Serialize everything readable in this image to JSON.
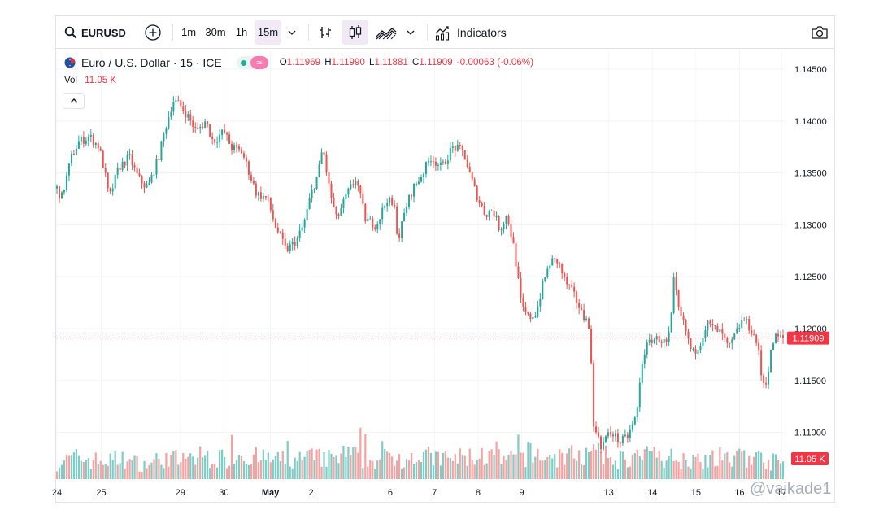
{
  "toolbar": {
    "symbol": "EURUSD",
    "intervals": [
      "1m",
      "30m",
      "1h",
      "15m"
    ],
    "active_interval": "15m",
    "indicators_label": "Indicators"
  },
  "legend": {
    "title": "Euro / U.S. Dollar · 15 · ICE",
    "ohlc": [
      {
        "key": "O",
        "value": "1.11969"
      },
      {
        "key": "H",
        "value": "1.11990"
      },
      {
        "key": "L",
        "value": "1.11881"
      },
      {
        "key": "C",
        "value": "1.11909"
      },
      {
        "key": "",
        "value": "-0.00063 (-0.06%)"
      }
    ],
    "volume_label": "Vol",
    "volume_value": "11.05 K"
  },
  "colors": {
    "up": "#26a69a",
    "down": "#ef5350",
    "up_volume": "#80cbc4",
    "down_volume": "#f7a1a1",
    "price_line": "#f23645",
    "active_button_bg": "#f2e9f7"
  },
  "icons": [
    "search-icon",
    "add-symbol-icon",
    "chevron-down-icon",
    "bar-style-icon",
    "candles-icon",
    "area-chart-icon",
    "indicators-icon",
    "camera-icon",
    "flag-icon",
    "collapse-up-icon"
  ],
  "watermark": "@vaikade1",
  "chart_data": {
    "type": "candlestick",
    "symbol": "EURUSD",
    "interval": "15",
    "y_ticks": [
      "1.14500",
      "1.14000",
      "1.13500",
      "1.13000",
      "1.12500",
      "1.12000",
      "1.11500",
      "1.11000"
    ],
    "y_tick_values": [
      1.145,
      1.14,
      1.135,
      1.13,
      1.125,
      1.12,
      1.115,
      1.11
    ],
    "ylim": [
      1.1055,
      1.1468
    ],
    "x_ticks": [
      {
        "label": "24",
        "t": 0.0
      },
      {
        "label": "25",
        "t": 0.061
      },
      {
        "label": "29",
        "t": 0.17
      },
      {
        "label": "30",
        "t": 0.23
      },
      {
        "label": "May",
        "t": 0.294,
        "bold": true
      },
      {
        "label": "2",
        "t": 0.35
      },
      {
        "label": "6",
        "t": 0.459
      },
      {
        "label": "7",
        "t": 0.52
      },
      {
        "label": "8",
        "t": 0.58
      },
      {
        "label": "9",
        "t": 0.64
      },
      {
        "label": "13",
        "t": 0.76
      },
      {
        "label": "14",
        "t": 0.82
      },
      {
        "label": "15",
        "t": 0.88
      },
      {
        "label": "16",
        "t": 0.94
      },
      {
        "label": "17",
        "t": 0.998
      }
    ],
    "price_path": [
      [
        0.0,
        1.1335
      ],
      [
        0.006,
        1.1325
      ],
      [
        0.02,
        1.1365
      ],
      [
        0.03,
        1.138
      ],
      [
        0.045,
        1.1385
      ],
      [
        0.058,
        1.1375
      ],
      [
        0.066,
        1.135
      ],
      [
        0.072,
        1.1325
      ],
      [
        0.085,
        1.1355
      ],
      [
        0.1,
        1.1365
      ],
      [
        0.112,
        1.1345
      ],
      [
        0.125,
        1.1335
      ],
      [
        0.14,
        1.1365
      ],
      [
        0.15,
        1.1395
      ],
      [
        0.16,
        1.142
      ],
      [
        0.17,
        1.1415
      ],
      [
        0.18,
        1.1405
      ],
      [
        0.192,
        1.139
      ],
      [
        0.205,
        1.14
      ],
      [
        0.215,
        1.138
      ],
      [
        0.23,
        1.139
      ],
      [
        0.24,
        1.1375
      ],
      [
        0.255,
        1.137
      ],
      [
        0.265,
        1.135
      ],
      [
        0.275,
        1.133
      ],
      [
        0.29,
        1.1325
      ],
      [
        0.3,
        1.13
      ],
      [
        0.31,
        1.1285
      ],
      [
        0.315,
        1.1275
      ],
      [
        0.33,
        1.1285
      ],
      [
        0.34,
        1.13
      ],
      [
        0.35,
        1.133
      ],
      [
        0.36,
        1.135
      ],
      [
        0.366,
        1.1375
      ],
      [
        0.375,
        1.1335
      ],
      [
        0.385,
        1.1305
      ],
      [
        0.4,
        1.133
      ],
      [
        0.412,
        1.1345
      ],
      [
        0.425,
        1.1305
      ],
      [
        0.44,
        1.13
      ],
      [
        0.455,
        1.1325
      ],
      [
        0.465,
        1.1315
      ],
      [
        0.47,
        1.1285
      ],
      [
        0.48,
        1.1315
      ],
      [
        0.49,
        1.1335
      ],
      [
        0.5,
        1.1345
      ],
      [
        0.515,
        1.1365
      ],
      [
        0.53,
        1.1355
      ],
      [
        0.545,
        1.1375
      ],
      [
        0.56,
        1.137
      ],
      [
        0.57,
        1.1345
      ],
      [
        0.58,
        1.1325
      ],
      [
        0.59,
        1.131
      ],
      [
        0.6,
        1.1315
      ],
      [
        0.61,
        1.1295
      ],
      [
        0.62,
        1.131
      ],
      [
        0.63,
        1.1275
      ],
      [
        0.64,
        1.122
      ],
      [
        0.65,
        1.121
      ],
      [
        0.66,
        1.1215
      ],
      [
        0.67,
        1.1245
      ],
      [
        0.68,
        1.1265
      ],
      [
        0.69,
        1.1265
      ],
      [
        0.7,
        1.1245
      ],
      [
        0.71,
        1.1235
      ],
      [
        0.72,
        1.122
      ],
      [
        0.725,
        1.121
      ],
      [
        0.73,
        1.1215
      ],
      [
        0.735,
        1.118
      ],
      [
        0.74,
        1.1095
      ],
      [
        0.745,
        1.11
      ],
      [
        0.75,
        1.1085
      ],
      [
        0.755,
        1.1095
      ],
      [
        0.765,
        1.11
      ],
      [
        0.775,
        1.109
      ],
      [
        0.785,
        1.1095
      ],
      [
        0.795,
        1.111
      ],
      [
        0.8,
        1.1125
      ],
      [
        0.805,
        1.1165
      ],
      [
        0.81,
        1.118
      ],
      [
        0.82,
        1.119
      ],
      [
        0.83,
        1.119
      ],
      [
        0.84,
        1.1185
      ],
      [
        0.845,
        1.12
      ],
      [
        0.85,
        1.125
      ],
      [
        0.855,
        1.122
      ],
      [
        0.865,
        1.12
      ],
      [
        0.875,
        1.1175
      ],
      [
        0.885,
        1.1185
      ],
      [
        0.895,
        1.1205
      ],
      [
        0.905,
        1.12
      ],
      [
        0.915,
        1.1195
      ],
      [
        0.925,
        1.118
      ],
      [
        0.935,
        1.1195
      ],
      [
        0.945,
        1.121
      ],
      [
        0.955,
        1.12
      ],
      [
        0.965,
        1.1185
      ],
      [
        0.97,
        1.1155
      ],
      [
        0.975,
        1.1145
      ],
      [
        0.98,
        1.116
      ],
      [
        0.985,
        1.1185
      ],
      [
        0.99,
        1.1192
      ],
      [
        1.0,
        1.11909
      ]
    ],
    "volume_profile": [
      [
        0.0,
        0.45
      ],
      [
        0.03,
        0.6
      ],
      [
        0.06,
        0.5
      ],
      [
        0.09,
        0.55
      ],
      [
        0.12,
        0.4
      ],
      [
        0.15,
        0.6
      ],
      [
        0.18,
        0.5
      ],
      [
        0.2,
        0.65
      ],
      [
        0.23,
        0.55
      ],
      [
        0.25,
        0.75
      ],
      [
        0.27,
        0.6
      ],
      [
        0.3,
        0.55
      ],
      [
        0.32,
        0.5
      ],
      [
        0.35,
        0.6
      ],
      [
        0.38,
        0.55
      ],
      [
        0.4,
        0.7
      ],
      [
        0.43,
        0.5
      ],
      [
        0.46,
        0.6
      ],
      [
        0.5,
        0.65
      ],
      [
        0.53,
        0.55
      ],
      [
        0.56,
        0.6
      ],
      [
        0.59,
        0.65
      ],
      [
        0.62,
        0.5
      ],
      [
        0.65,
        0.7
      ],
      [
        0.68,
        0.6
      ],
      [
        0.71,
        0.65
      ],
      [
        0.74,
        0.7
      ],
      [
        0.77,
        0.55
      ],
      [
        0.8,
        0.6
      ],
      [
        0.83,
        0.65
      ],
      [
        0.86,
        0.55
      ],
      [
        0.89,
        0.6
      ],
      [
        0.92,
        0.5
      ],
      [
        0.95,
        0.65
      ],
      [
        0.98,
        0.5
      ],
      [
        1.0,
        0.45
      ]
    ],
    "volume_max": 20,
    "last_price": 1.11909,
    "last_price_label": "1.11909",
    "last_volume_label": "11.05 K"
  }
}
